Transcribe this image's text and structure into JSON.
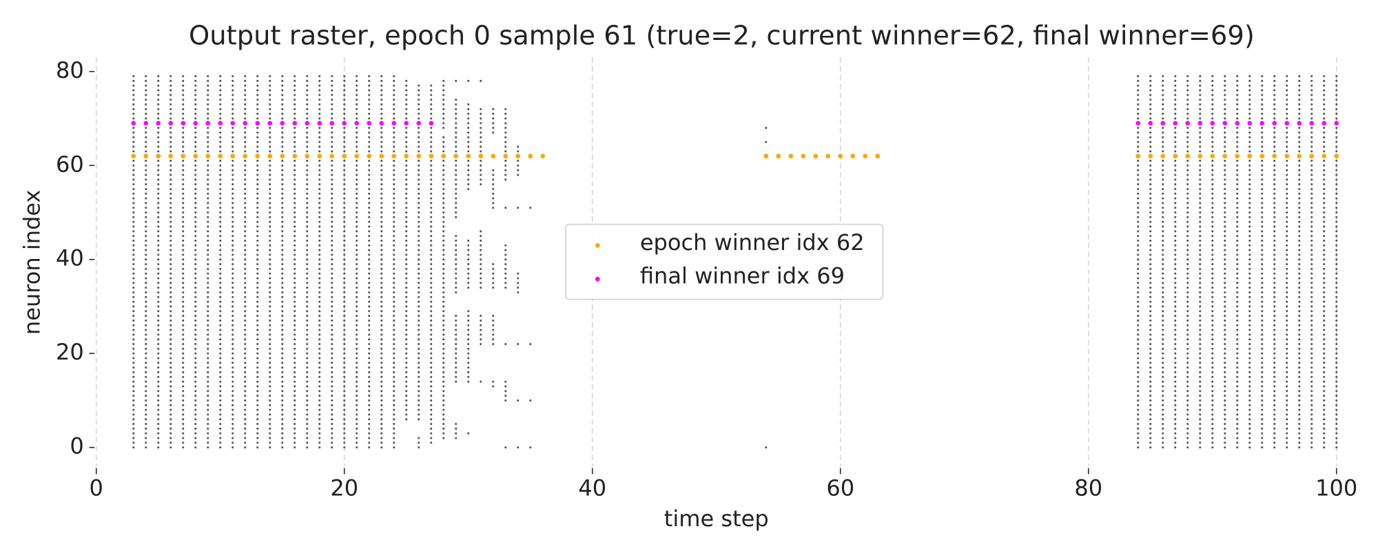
{
  "chart_data": {
    "type": "scatter",
    "title": "Output raster, epoch 0 sample 61 (true=2, current winner=62, final winner=69)",
    "x_label": "time step",
    "y_label": "neuron index",
    "xlim": [
      0,
      100
    ],
    "ylim": [
      -4,
      83
    ],
    "xticks": [
      0,
      20,
      40,
      60,
      80,
      100
    ],
    "yticks": [
      0,
      20,
      40,
      60,
      80
    ],
    "grid": "x",
    "legend": "center",
    "raster_color": "#555555",
    "raster": [
      {
        "t": 3,
        "spans": [
          [
            0,
            79
          ]
        ]
      },
      {
        "t": 4,
        "spans": [
          [
            0,
            79
          ]
        ]
      },
      {
        "t": 5,
        "spans": [
          [
            0,
            79
          ]
        ]
      },
      {
        "t": 6,
        "spans": [
          [
            0,
            79
          ]
        ]
      },
      {
        "t": 7,
        "spans": [
          [
            0,
            79
          ]
        ]
      },
      {
        "t": 8,
        "spans": [
          [
            0,
            79
          ]
        ]
      },
      {
        "t": 9,
        "spans": [
          [
            0,
            79
          ]
        ]
      },
      {
        "t": 10,
        "spans": [
          [
            0,
            79
          ]
        ]
      },
      {
        "t": 11,
        "spans": [
          [
            0,
            79
          ]
        ]
      },
      {
        "t": 12,
        "spans": [
          [
            0,
            79
          ]
        ]
      },
      {
        "t": 13,
        "spans": [
          [
            0,
            79
          ]
        ]
      },
      {
        "t": 14,
        "spans": [
          [
            0,
            79
          ]
        ]
      },
      {
        "t": 15,
        "spans": [
          [
            0,
            79
          ]
        ]
      },
      {
        "t": 16,
        "spans": [
          [
            0,
            79
          ]
        ]
      },
      {
        "t": 17,
        "spans": [
          [
            0,
            79
          ]
        ]
      },
      {
        "t": 18,
        "spans": [
          [
            0,
            79
          ]
        ]
      },
      {
        "t": 19,
        "spans": [
          [
            0,
            79
          ]
        ]
      },
      {
        "t": 20,
        "spans": [
          [
            0,
            79
          ]
        ]
      },
      {
        "t": 21,
        "spans": [
          [
            0,
            79
          ]
        ]
      },
      {
        "t": 22,
        "spans": [
          [
            0,
            79
          ]
        ]
      },
      {
        "t": 23,
        "spans": [
          [
            0,
            79
          ]
        ]
      },
      {
        "t": 24,
        "spans": [
          [
            0,
            79
          ]
        ]
      },
      {
        "t": 25,
        "spans": [
          [
            6,
            78
          ]
        ]
      },
      {
        "t": 26,
        "spans": [
          [
            0,
            2
          ],
          [
            6,
            77
          ]
        ]
      },
      {
        "t": 27,
        "spans": [
          [
            1,
            77
          ]
        ]
      },
      {
        "t": 28,
        "spans": [
          [
            2,
            66
          ],
          [
            68,
            78
          ]
        ]
      },
      {
        "t": 29,
        "spans": [
          [
            2,
            5
          ],
          [
            14,
            28
          ],
          [
            33,
            45
          ],
          [
            49,
            74
          ],
          [
            78,
            78
          ]
        ]
      },
      {
        "t": 30,
        "spans": [
          [
            3,
            3
          ],
          [
            14,
            29
          ],
          [
            34,
            44
          ],
          [
            55,
            73
          ],
          [
            78,
            78
          ]
        ]
      },
      {
        "t": 31,
        "spans": [
          [
            14,
            14
          ],
          [
            22,
            28
          ],
          [
            34,
            46
          ],
          [
            56,
            72
          ],
          [
            78,
            78
          ]
        ]
      },
      {
        "t": 32,
        "spans": [
          [
            13,
            14
          ],
          [
            22,
            28
          ],
          [
            34,
            39
          ],
          [
            51,
            59
          ],
          [
            67,
            72
          ]
        ]
      },
      {
        "t": 33,
        "spans": [
          [
            0,
            0
          ],
          [
            10,
            14
          ],
          [
            22,
            22
          ],
          [
            34,
            43
          ],
          [
            51,
            51
          ],
          [
            57,
            72
          ]
        ]
      },
      {
        "t": 34,
        "spans": [
          [
            0,
            0
          ],
          [
            10,
            10
          ],
          [
            22,
            22
          ],
          [
            33,
            37
          ],
          [
            51,
            51
          ],
          [
            58,
            64
          ]
        ]
      },
      {
        "t": 35,
        "spans": [
          [
            0,
            0
          ],
          [
            10,
            10
          ],
          [
            22,
            22
          ],
          [
            51,
            51
          ]
        ]
      },
      {
        "t": 54,
        "spans": [
          [
            0,
            0
          ],
          [
            65,
            65
          ],
          [
            68,
            68
          ]
        ]
      },
      {
        "t": 84,
        "spans": [
          [
            0,
            79
          ]
        ]
      },
      {
        "t": 85,
        "spans": [
          [
            0,
            79
          ]
        ]
      },
      {
        "t": 86,
        "spans": [
          [
            0,
            79
          ]
        ]
      },
      {
        "t": 87,
        "spans": [
          [
            0,
            79
          ]
        ]
      },
      {
        "t": 88,
        "spans": [
          [
            0,
            79
          ]
        ]
      },
      {
        "t": 89,
        "spans": [
          [
            0,
            79
          ]
        ]
      },
      {
        "t": 90,
        "spans": [
          [
            0,
            79
          ]
        ]
      },
      {
        "t": 91,
        "spans": [
          [
            0,
            79
          ]
        ]
      },
      {
        "t": 92,
        "spans": [
          [
            0,
            79
          ]
        ]
      },
      {
        "t": 93,
        "spans": [
          [
            0,
            79
          ]
        ]
      },
      {
        "t": 94,
        "spans": [
          [
            0,
            79
          ]
        ]
      },
      {
        "t": 95,
        "spans": [
          [
            0,
            79
          ]
        ]
      },
      {
        "t": 96,
        "spans": [
          [
            0,
            79
          ]
        ]
      },
      {
        "t": 97,
        "spans": [
          [
            0,
            79
          ]
        ]
      },
      {
        "t": 98,
        "spans": [
          [
            0,
            79
          ]
        ]
      },
      {
        "t": 99,
        "spans": [
          [
            0,
            79
          ]
        ]
      },
      {
        "t": 100,
        "spans": [
          [
            0,
            79
          ]
        ]
      }
    ],
    "series": [
      {
        "name": "epoch winner idx 62",
        "color": "#ffa500",
        "x": [
          3,
          4,
          5,
          6,
          7,
          8,
          9,
          10,
          11,
          12,
          13,
          14,
          15,
          16,
          17,
          18,
          19,
          20,
          21,
          22,
          23,
          24,
          25,
          26,
          27,
          28,
          29,
          30,
          31,
          32,
          33,
          34,
          35,
          36,
          54,
          55,
          56,
          57,
          58,
          59,
          60,
          61,
          62,
          63,
          84,
          85,
          86,
          87,
          88,
          89,
          90,
          91,
          92,
          93,
          94,
          95,
          96,
          97,
          98,
          99,
          100
        ],
        "values": [
          62,
          62,
          62,
          62,
          62,
          62,
          62,
          62,
          62,
          62,
          62,
          62,
          62,
          62,
          62,
          62,
          62,
          62,
          62,
          62,
          62,
          62,
          62,
          62,
          62,
          62,
          62,
          62,
          62,
          62,
          62,
          62,
          62,
          62,
          62,
          62,
          62,
          62,
          62,
          62,
          62,
          62,
          62,
          62,
          62,
          62,
          62,
          62,
          62,
          62,
          62,
          62,
          62,
          62,
          62,
          62,
          62,
          62,
          62,
          62,
          62
        ]
      },
      {
        "name": "final winner idx 69",
        "color": "#ff00ff",
        "x": [
          3,
          4,
          5,
          6,
          7,
          8,
          9,
          10,
          11,
          12,
          13,
          14,
          15,
          16,
          17,
          18,
          19,
          20,
          21,
          22,
          23,
          24,
          25,
          26,
          27,
          84,
          85,
          86,
          87,
          88,
          89,
          90,
          91,
          92,
          93,
          94,
          95,
          96,
          97,
          98,
          99,
          100
        ],
        "values": [
          69,
          69,
          69,
          69,
          69,
          69,
          69,
          69,
          69,
          69,
          69,
          69,
          69,
          69,
          69,
          69,
          69,
          69,
          69,
          69,
          69,
          69,
          69,
          69,
          69,
          69,
          69,
          69,
          69,
          69,
          69,
          69,
          69,
          69,
          69,
          69,
          69,
          69,
          69,
          69,
          69,
          69
        ]
      }
    ]
  }
}
